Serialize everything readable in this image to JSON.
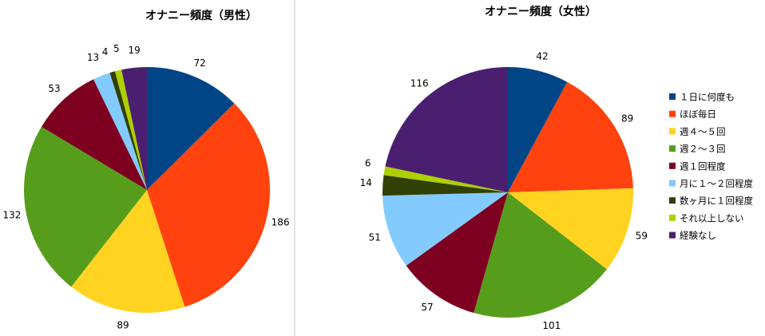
{
  "chart_data": [
    {
      "type": "pie",
      "title": "オナニー頻度（男性）",
      "categories": [
        "１日に何度も",
        "ほぼ毎日",
        "週４～５回",
        "週２～３回",
        "週１回程度",
        "月に１～２回程度",
        "数ヶ月に１回程度",
        "それ以上しない",
        "経験なし"
      ],
      "values": [
        72,
        186,
        89,
        132,
        53,
        13,
        4,
        5,
        19
      ],
      "colors": [
        "#004586",
        "#ff420e",
        "#ffd320",
        "#579d1c",
        "#7e0021",
        "#83caff",
        "#314004",
        "#aecf00",
        "#4b1f6f"
      ]
    },
    {
      "type": "pie",
      "title": "オナニー頻度（女性）",
      "categories": [
        "１日に何度も",
        "ほぼ毎日",
        "週４～５回",
        "週２～３回",
        "週１回程度",
        "月に１～２回程度",
        "数ヶ月に１回程度",
        "それ以上しない",
        "経験なし"
      ],
      "values": [
        42,
        89,
        59,
        101,
        57,
        51,
        14,
        6,
        116
      ],
      "colors": [
        "#004586",
        "#ff420e",
        "#ffd320",
        "#579d1c",
        "#7e0021",
        "#83caff",
        "#314004",
        "#aecf00",
        "#4b1f6f"
      ],
      "legend": "right"
    }
  ]
}
